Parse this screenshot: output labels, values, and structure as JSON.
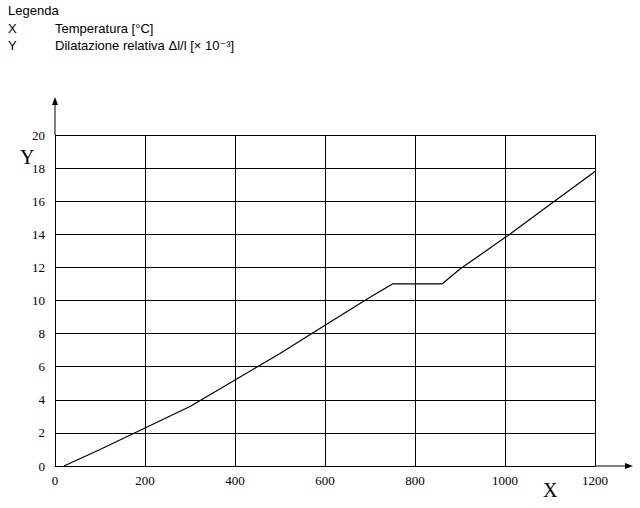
{
  "chart_data": {
    "type": "line",
    "title": "Legenda",
    "annotations": [
      {
        "symbol": "X",
        "text": "Temperatura [°C]"
      },
      {
        "symbol": "Y",
        "text": "Dilatazione relativa Δl/l [× 10⁻³]"
      }
    ],
    "x_label": "X",
    "y_label": "Y",
    "x": [
      20,
      100,
      200,
      300,
      400,
      500,
      600,
      700,
      750,
      860,
      900,
      1000,
      1100,
      1200
    ],
    "values": [
      0,
      1.0,
      2.3,
      3.6,
      5.2,
      6.8,
      8.5,
      10.2,
      11.0,
      11.0,
      11.9,
      13.8,
      15.8,
      17.8
    ],
    "color": "#000000",
    "xlim": [
      0,
      1200
    ],
    "xticks": [
      0,
      200,
      400,
      600,
      800,
      1000,
      1200
    ],
    "ylim": [
      0,
      20
    ],
    "yticks": [
      0,
      2,
      4,
      6,
      8,
      10,
      12,
      14,
      16,
      18,
      20
    ],
    "grid": true
  }
}
